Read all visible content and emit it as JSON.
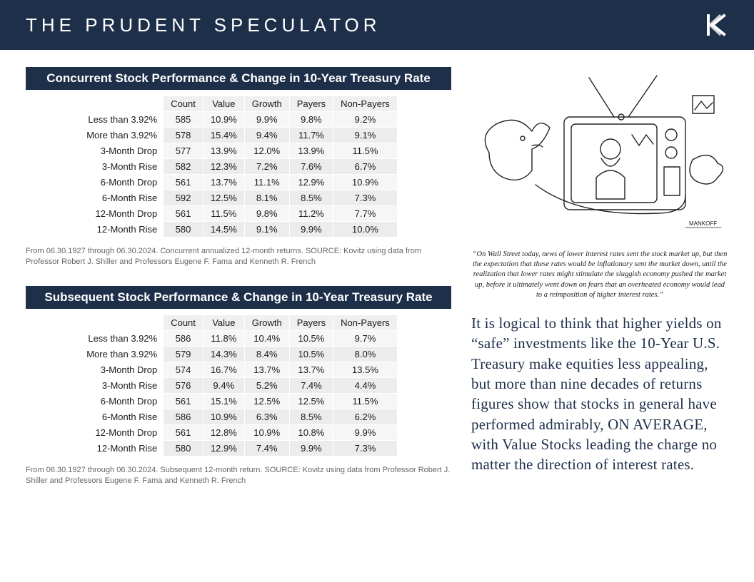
{
  "header": {
    "title": "THE PRUDENT SPECULATOR",
    "logo_color": "#ffffff",
    "bg_color": "#1e2f4a"
  },
  "table_defs": {
    "columns": [
      "Count",
      "Value",
      "Growth",
      "Payers",
      "Non-Payers"
    ],
    "row_labels": [
      "Less than 3.92%",
      "More than 3.92%",
      "3-Month Drop",
      "3-Month Rise",
      "6-Month Drop",
      "6-Month Rise",
      "12-Month Drop",
      "12-Month Rise"
    ],
    "header_bg": "#f0f0f0",
    "row_bg_odd": "#f6f6f6",
    "row_bg_even": "#ececec",
    "title_bg": "#1e2f4a",
    "title_color": "#ffffff"
  },
  "tables": {
    "concurrent": {
      "title": "Concurrent Stock Performance & Change in 10-Year Treasury Rate",
      "rows": [
        [
          "585",
          "10.9%",
          "9.9%",
          "9.8%",
          "9.2%"
        ],
        [
          "578",
          "15.4%",
          "9.4%",
          "11.7%",
          "9.1%"
        ],
        [
          "577",
          "13.9%",
          "12.0%",
          "13.9%",
          "11.5%"
        ],
        [
          "582",
          "12.3%",
          "7.2%",
          "7.6%",
          "6.7%"
        ],
        [
          "561",
          "13.7%",
          "11.1%",
          "12.9%",
          "10.9%"
        ],
        [
          "592",
          "12.5%",
          "8.1%",
          "8.5%",
          "7.3%"
        ],
        [
          "561",
          "11.5%",
          "9.8%",
          "11.2%",
          "7.7%"
        ],
        [
          "580",
          "14.5%",
          "9.1%",
          "9.9%",
          "10.0%"
        ]
      ],
      "source": "From 06.30.1927 through 06.30.2024. Concurrent annualized 12-month returns. SOURCE: Kovitz using data from Professor Robert J. Shiller and Professors Eugene F. Fama and Kenneth R. French"
    },
    "subsequent": {
      "title": "Subsequent Stock Performance & Change in 10-Year Treasury Rate",
      "rows": [
        [
          "586",
          "11.8%",
          "10.4%",
          "10.5%",
          "9.7%"
        ],
        [
          "579",
          "14.3%",
          "8.4%",
          "10.5%",
          "8.0%"
        ],
        [
          "574",
          "16.7%",
          "13.7%",
          "13.7%",
          "13.5%"
        ],
        [
          "576",
          "9.4%",
          "5.2%",
          "7.4%",
          "4.4%"
        ],
        [
          "561",
          "15.1%",
          "12.5%",
          "12.5%",
          "11.5%"
        ],
        [
          "586",
          "10.9%",
          "6.3%",
          "8.5%",
          "6.2%"
        ],
        [
          "561",
          "12.8%",
          "10.9%",
          "10.8%",
          "9.9%"
        ],
        [
          "580",
          "12.9%",
          "7.4%",
          "9.9%",
          "7.3%"
        ]
      ],
      "source": "From 06.30.1927 through 06.30.2024. Subsequent 12-month return. SOURCE: Kovitz using data from Professor Robert J. Shiller and Professors Eugene F. Fama and Kenneth R. French"
    }
  },
  "cartoon": {
    "caption": "“On Wall Street today, news of lower interest rates sent the stock market up, but then the expectation that these rates would be inflationary sent the market down, until the realization that lower rates might stimulate the sluggish economy pushed the market up, before it ultimately went down on fears that an overheated economy would lead to a reimposition of higher interest rates.”",
    "stroke_color": "#222222"
  },
  "commentary": "It is logical to think that higher yields on “safe” investments like the 10-Year U.S. Treasury make equities less appealing, but more than nine decades of returns figures show that stocks in general have performed admirably, ON AVERAGE, with Value Stocks leading the charge no matter the direction of interest rates."
}
